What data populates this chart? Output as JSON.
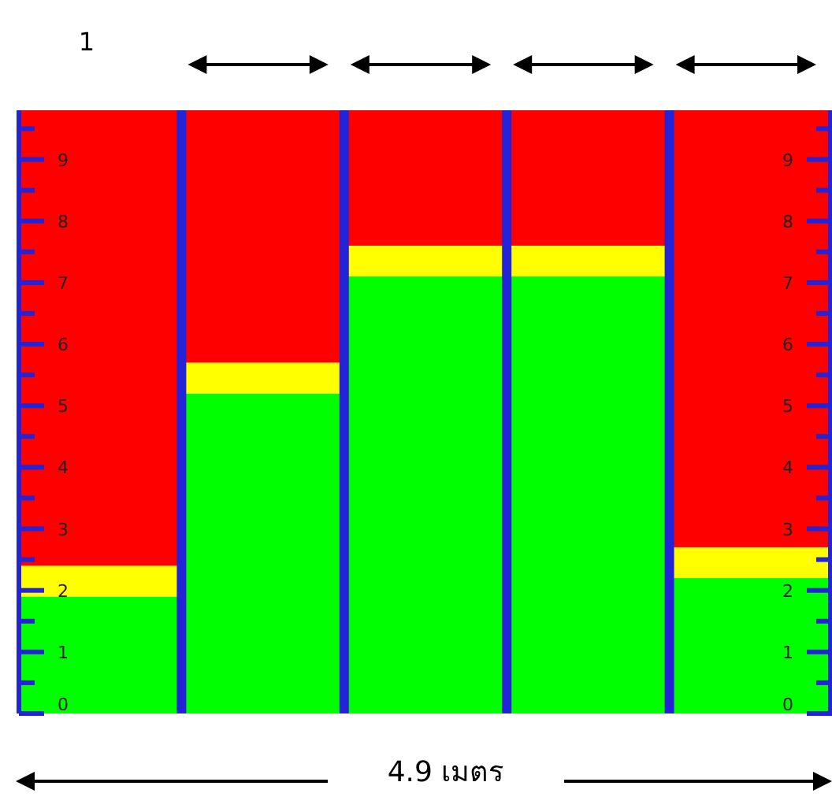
{
  "chart_data": {
    "type": "bar",
    "stacked": true,
    "categories": [
      null,
      null,
      null,
      null,
      null
    ],
    "series": [
      {
        "color": "#00ff00",
        "values": [
          1.9,
          5.2,
          7.1,
          7.1,
          2.2
        ]
      },
      {
        "color": "#ffff00",
        "values": [
          0.5,
          0.5,
          0.5,
          0.5,
          0.5
        ]
      },
      {
        "color": "#ff0000",
        "values": [
          7.4,
          4.1,
          2.2,
          2.2,
          7.1
        ]
      }
    ],
    "ylim": [
      0,
      9.8
    ],
    "yticks": [
      0,
      {
        "value": 0.5,
        "label": null
      },
      1,
      {
        "value": 1.5,
        "label": null
      },
      2,
      {
        "value": 2.5,
        "label": null
      },
      3,
      {
        "value": 3.5,
        "label": null
      },
      4,
      {
        "value": 4.5,
        "label": null
      },
      5,
      {
        "value": 5.5,
        "label": null
      },
      6,
      {
        "value": 6.5,
        "label": null
      },
      7,
      {
        "value": 7.5,
        "label": null
      },
      8,
      {
        "value": 8.5,
        "label": null
      },
      9,
      {
        "value": 9.5,
        "label": null
      }
    ],
    "y2lim": [
      0,
      9.8
    ],
    "y2ticks": [
      0,
      {
        "value": 0.5,
        "label": null
      },
      1,
      {
        "value": 1.5,
        "label": null
      },
      2,
      {
        "value": 2.5,
        "label": null
      },
      3,
      {
        "value": 3.5,
        "label": null
      },
      4,
      {
        "value": 4.5,
        "label": null
      },
      5,
      {
        "value": 5.5,
        "label": null
      },
      6,
      {
        "value": 6.5,
        "label": null
      },
      7,
      {
        "value": 7.5,
        "label": null
      },
      8,
      {
        "value": 8.5,
        "label": null
      },
      9,
      {
        "value": 9.5,
        "label": null
      }
    ],
    "annotations": [
      "1",
      "4.9 เมตร"
    ]
  }
}
